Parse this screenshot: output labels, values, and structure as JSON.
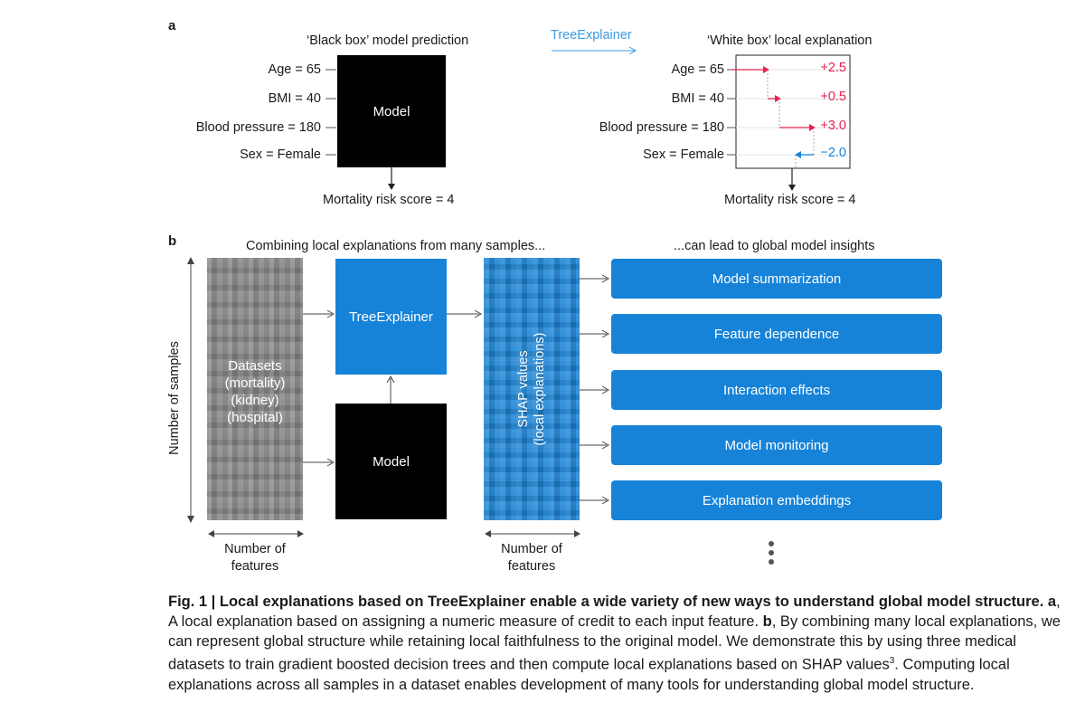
{
  "panel_a": {
    "letter": "a",
    "left_title": "‘Black box’ model prediction",
    "right_title": "‘White box’ local explanation",
    "tree_explainer_label": "TreeExplainer",
    "features": [
      {
        "label": "Age = 65",
        "value": "+2.5"
      },
      {
        "label": "BMI = 40",
        "value": "+0.5"
      },
      {
        "label": "Blood pressure = 180",
        "value": "+3.0"
      },
      {
        "label": "Sex = Female",
        "value": "−2.0"
      }
    ],
    "model_label": "Model",
    "output_left": "Mortality risk score = 4",
    "output_right": "Mortality risk score = 4",
    "colors": {
      "positive": "#e8214f",
      "negative": "#1683d8"
    }
  },
  "panel_b": {
    "letter": "b",
    "left_title": "Combining local explanations from many samples...",
    "right_title": "...can lead to global model insights",
    "y_axis_label": "Number of samples",
    "datasets_lines": [
      "Datasets",
      "(mortality)",
      "(kidney)",
      "(hospital)"
    ],
    "tree_explainer_label": "TreeExplainer",
    "model_label": "Model",
    "shap_lines": [
      "SHAP values",
      "(local explanations)"
    ],
    "features_label_1": [
      "Number of",
      "features"
    ],
    "features_label_2": [
      "Number of",
      "features"
    ],
    "insights": [
      "Model summarization",
      "Feature dependence",
      "Interaction effects",
      "Model monitoring",
      "Explanation embeddings"
    ]
  },
  "caption": {
    "lead": "Fig. 1 | Local explanations based on TreeExplainer enable a wide variety of new ways to understand global model structure.",
    "a_label": "a",
    "a_text": ", A local explanation based on assigning a numeric measure of credit to each input feature.",
    "b_label": "b",
    "b_text": ", By combining many local explanations, we can represent global structure while retaining local faithfulness to the original model. We demonstrate this by using three medical datasets to train gradient boosted decision trees and then compute local explanations based on SHAP values",
    "ref": "3",
    "tail": ". Computing local explanations across all samples in a dataset enables development of many tools for understanding global model structure."
  }
}
